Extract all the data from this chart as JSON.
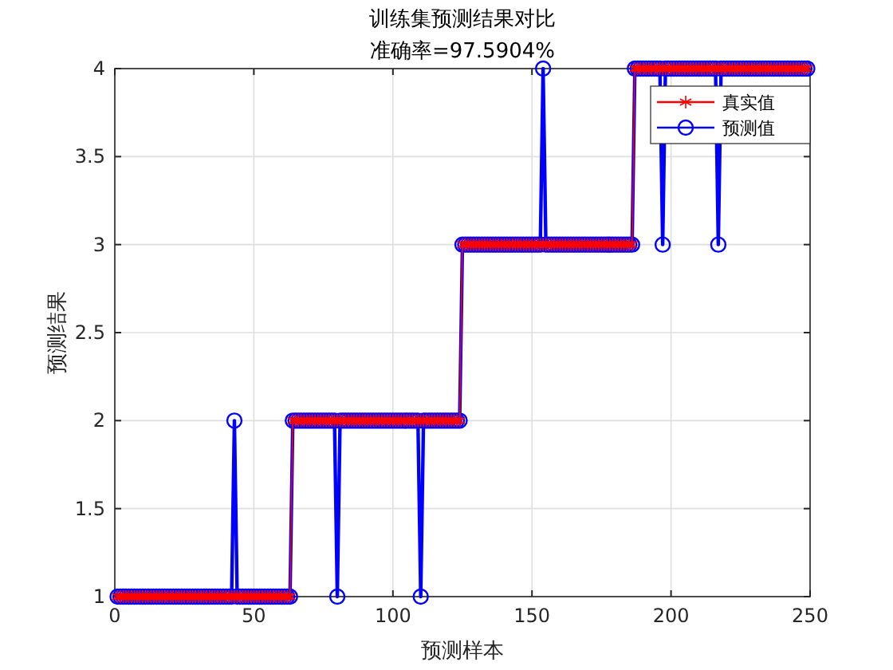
{
  "chart_data": {
    "type": "line",
    "title": "训练集预测结果对比",
    "subtitle": "准确率=97.5904%",
    "xlabel": "预测样本",
    "ylabel": "预测结果",
    "x": [
      1,
      2,
      3,
      4,
      5,
      6,
      7,
      8,
      9,
      10,
      11,
      12,
      13,
      14,
      15,
      16,
      17,
      18,
      19,
      20,
      21,
      22,
      23,
      24,
      25,
      26,
      27,
      28,
      29,
      30,
      31,
      32,
      33,
      34,
      35,
      36,
      37,
      38,
      39,
      40,
      41,
      42,
      43,
      44,
      45,
      46,
      47,
      48,
      49,
      50,
      51,
      52,
      53,
      54,
      55,
      56,
      57,
      58,
      59,
      60,
      61,
      62,
      63,
      64,
      65,
      66,
      67,
      68,
      69,
      70,
      71,
      72,
      73,
      74,
      75,
      76,
      77,
      78,
      79,
      80,
      81,
      82,
      83,
      84,
      85,
      86,
      87,
      88,
      89,
      90,
      91,
      92,
      93,
      94,
      95,
      96,
      97,
      98,
      99,
      100,
      101,
      102,
      103,
      104,
      105,
      106,
      107,
      108,
      109,
      110,
      111,
      112,
      113,
      114,
      115,
      116,
      117,
      118,
      119,
      120,
      121,
      122,
      123,
      124,
      125,
      126,
      127,
      128,
      129,
      130,
      131,
      132,
      133,
      134,
      135,
      136,
      137,
      138,
      139,
      140,
      141,
      142,
      143,
      144,
      145,
      146,
      147,
      148,
      149,
      150,
      151,
      152,
      153,
      154,
      155,
      156,
      157,
      158,
      159,
      160,
      161,
      162,
      163,
      164,
      165,
      166,
      167,
      168,
      169,
      170,
      171,
      172,
      173,
      174,
      175,
      176,
      177,
      178,
      179,
      180,
      181,
      182,
      183,
      184,
      185,
      186,
      187,
      188,
      189,
      190,
      191,
      192,
      193,
      194,
      195,
      196,
      197,
      198,
      199,
      200,
      201,
      202,
      203,
      204,
      205,
      206,
      207,
      208,
      209,
      210,
      211,
      212,
      213,
      214,
      215,
      216,
      217,
      218,
      219,
      220,
      221,
      222,
      223,
      224,
      225,
      226,
      227,
      228,
      229,
      230,
      231,
      232,
      233,
      234,
      235,
      236,
      237,
      238,
      239,
      240,
      241,
      242,
      243,
      244,
      245,
      246,
      247,
      248,
      249
    ],
    "series": [
      {
        "name": "真实值",
        "color": "#ff0000",
        "marker": "cross",
        "values": [
          1,
          1,
          1,
          1,
          1,
          1,
          1,
          1,
          1,
          1,
          1,
          1,
          1,
          1,
          1,
          1,
          1,
          1,
          1,
          1,
          1,
          1,
          1,
          1,
          1,
          1,
          1,
          1,
          1,
          1,
          1,
          1,
          1,
          1,
          1,
          1,
          1,
          1,
          1,
          1,
          1,
          1,
          1,
          1,
          1,
          1,
          1,
          1,
          1,
          1,
          1,
          1,
          1,
          1,
          1,
          1,
          1,
          1,
          1,
          1,
          1,
          1,
          1,
          2,
          2,
          2,
          2,
          2,
          2,
          2,
          2,
          2,
          2,
          2,
          2,
          2,
          2,
          2,
          2,
          2,
          2,
          2,
          2,
          2,
          2,
          2,
          2,
          2,
          2,
          2,
          2,
          2,
          2,
          2,
          2,
          2,
          2,
          2,
          2,
          2,
          2,
          2,
          2,
          2,
          2,
          2,
          2,
          2,
          2,
          2,
          2,
          2,
          2,
          2,
          2,
          2,
          2,
          2,
          2,
          2,
          2,
          2,
          2,
          2,
          3,
          3,
          3,
          3,
          3,
          3,
          3,
          3,
          3,
          3,
          3,
          3,
          3,
          3,
          3,
          3,
          3,
          3,
          3,
          3,
          3,
          3,
          3,
          3,
          3,
          3,
          3,
          3,
          3,
          3,
          3,
          3,
          3,
          3,
          3,
          3,
          3,
          3,
          3,
          3,
          3,
          3,
          3,
          3,
          3,
          3,
          3,
          3,
          3,
          3,
          3,
          3,
          3,
          3,
          3,
          3,
          3,
          3,
          3,
          3,
          3,
          3,
          4,
          4,
          4,
          4,
          4,
          4,
          4,
          4,
          4,
          4,
          4,
          4,
          4,
          4,
          4,
          4,
          4,
          4,
          4,
          4,
          4,
          4,
          4,
          4,
          4,
          4,
          4,
          4,
          4,
          4,
          4,
          4,
          4,
          4,
          4,
          4,
          4,
          4,
          4,
          4,
          4,
          4,
          4,
          4,
          4,
          4,
          4,
          4,
          4,
          4,
          4,
          4,
          4,
          4,
          4,
          4,
          4,
          4,
          4,
          4,
          4,
          4,
          4
        ]
      },
      {
        "name": "预测值",
        "color": "#0000ff",
        "marker": "circle",
        "values": [
          1,
          1,
          1,
          1,
          1,
          1,
          1,
          1,
          1,
          1,
          1,
          1,
          1,
          1,
          1,
          1,
          1,
          1,
          1,
          1,
          1,
          1,
          1,
          1,
          1,
          1,
          1,
          1,
          1,
          1,
          1,
          1,
          1,
          1,
          1,
          1,
          1,
          1,
          1,
          1,
          1,
          1,
          2,
          1,
          1,
          1,
          1,
          1,
          1,
          1,
          1,
          1,
          1,
          1,
          1,
          1,
          1,
          1,
          1,
          1,
          1,
          1,
          1,
          2,
          2,
          2,
          2,
          2,
          2,
          2,
          2,
          2,
          2,
          2,
          2,
          2,
          2,
          2,
          2,
          1,
          2,
          2,
          2,
          2,
          2,
          2,
          2,
          2,
          2,
          2,
          2,
          2,
          2,
          2,
          2,
          2,
          2,
          2,
          2,
          2,
          2,
          2,
          2,
          2,
          2,
          2,
          2,
          2,
          2,
          1,
          2,
          2,
          2,
          2,
          2,
          2,
          2,
          2,
          2,
          2,
          2,
          2,
          2,
          2,
          3,
          3,
          3,
          3,
          3,
          3,
          3,
          3,
          3,
          3,
          3,
          3,
          3,
          3,
          3,
          3,
          3,
          3,
          3,
          3,
          3,
          3,
          3,
          3,
          3,
          3,
          3,
          3,
          3,
          4,
          3,
          3,
          3,
          3,
          3,
          3,
          3,
          3,
          3,
          3,
          3,
          3,
          3,
          3,
          3,
          3,
          3,
          3,
          3,
          3,
          3,
          3,
          3,
          3,
          3,
          3,
          3,
          3,
          3,
          3,
          3,
          3,
          4,
          4,
          4,
          4,
          4,
          4,
          4,
          4,
          4,
          4,
          3,
          4,
          4,
          4,
          4,
          4,
          4,
          4,
          4,
          4,
          4,
          4,
          4,
          4,
          4,
          4,
          4,
          4,
          4,
          4,
          3,
          4,
          4,
          4,
          4,
          4,
          4,
          4,
          4,
          4,
          4,
          4,
          4,
          4,
          4,
          4,
          4,
          4,
          4,
          4,
          4,
          4,
          4,
          4,
          4,
          4,
          4,
          4,
          4,
          4,
          4,
          4,
          4
        ]
      }
    ],
    "xlim": [
      0,
      250
    ],
    "ylim": [
      1,
      4
    ],
    "xticks": [
      0,
      50,
      100,
      150,
      200,
      250
    ],
    "yticks": [
      1,
      1.5,
      2,
      2.5,
      3,
      3.5,
      4
    ],
    "grid": true,
    "legend": "top right",
    "line_style": "solid"
  }
}
